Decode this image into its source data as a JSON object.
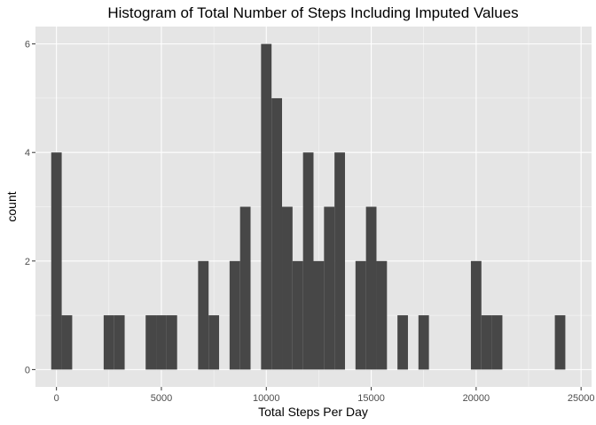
{
  "chart_data": {
    "type": "bar",
    "title": "Histogram of Total Number of Steps Including Imputed Values",
    "xlabel": "Total Steps Per Day",
    "ylabel": "count",
    "xlim": [
      -1000,
      25500
    ],
    "ylim": [
      -0.32,
      6.32
    ],
    "xticks": [
      0,
      5000,
      10000,
      15000,
      20000,
      25000
    ],
    "xtick_labels": [
      "0",
      "5000",
      "10000",
      "15000",
      "20000",
      "25000"
    ],
    "yticks": [
      0,
      2,
      4,
      6
    ],
    "ytick_labels": [
      "0",
      "2",
      "4",
      "6"
    ],
    "bin_width": 500,
    "bins": [
      {
        "center": 0,
        "count": 4
      },
      {
        "center": 500,
        "count": 1
      },
      {
        "center": 2500,
        "count": 1
      },
      {
        "center": 3000,
        "count": 1
      },
      {
        "center": 4500,
        "count": 1
      },
      {
        "center": 5000,
        "count": 1
      },
      {
        "center": 5500,
        "count": 1
      },
      {
        "center": 7000,
        "count": 2
      },
      {
        "center": 7500,
        "count": 1
      },
      {
        "center": 8500,
        "count": 2
      },
      {
        "center": 9000,
        "count": 3
      },
      {
        "center": 10000,
        "count": 6
      },
      {
        "center": 10500,
        "count": 5
      },
      {
        "center": 11000,
        "count": 3
      },
      {
        "center": 11500,
        "count": 2
      },
      {
        "center": 12000,
        "count": 4
      },
      {
        "center": 12500,
        "count": 2
      },
      {
        "center": 13000,
        "count": 3
      },
      {
        "center": 13500,
        "count": 4
      },
      {
        "center": 14500,
        "count": 2
      },
      {
        "center": 15000,
        "count": 3
      },
      {
        "center": 15500,
        "count": 2
      },
      {
        "center": 16500,
        "count": 1
      },
      {
        "center": 17500,
        "count": 1
      },
      {
        "center": 20000,
        "count": 2
      },
      {
        "center": 20500,
        "count": 1
      },
      {
        "center": 21000,
        "count": 1
      },
      {
        "center": 24000,
        "count": 1
      }
    ],
    "colors": {
      "panel": "#e5e5e5",
      "grid_major": "#ffffff",
      "bar": "#474747"
    }
  }
}
